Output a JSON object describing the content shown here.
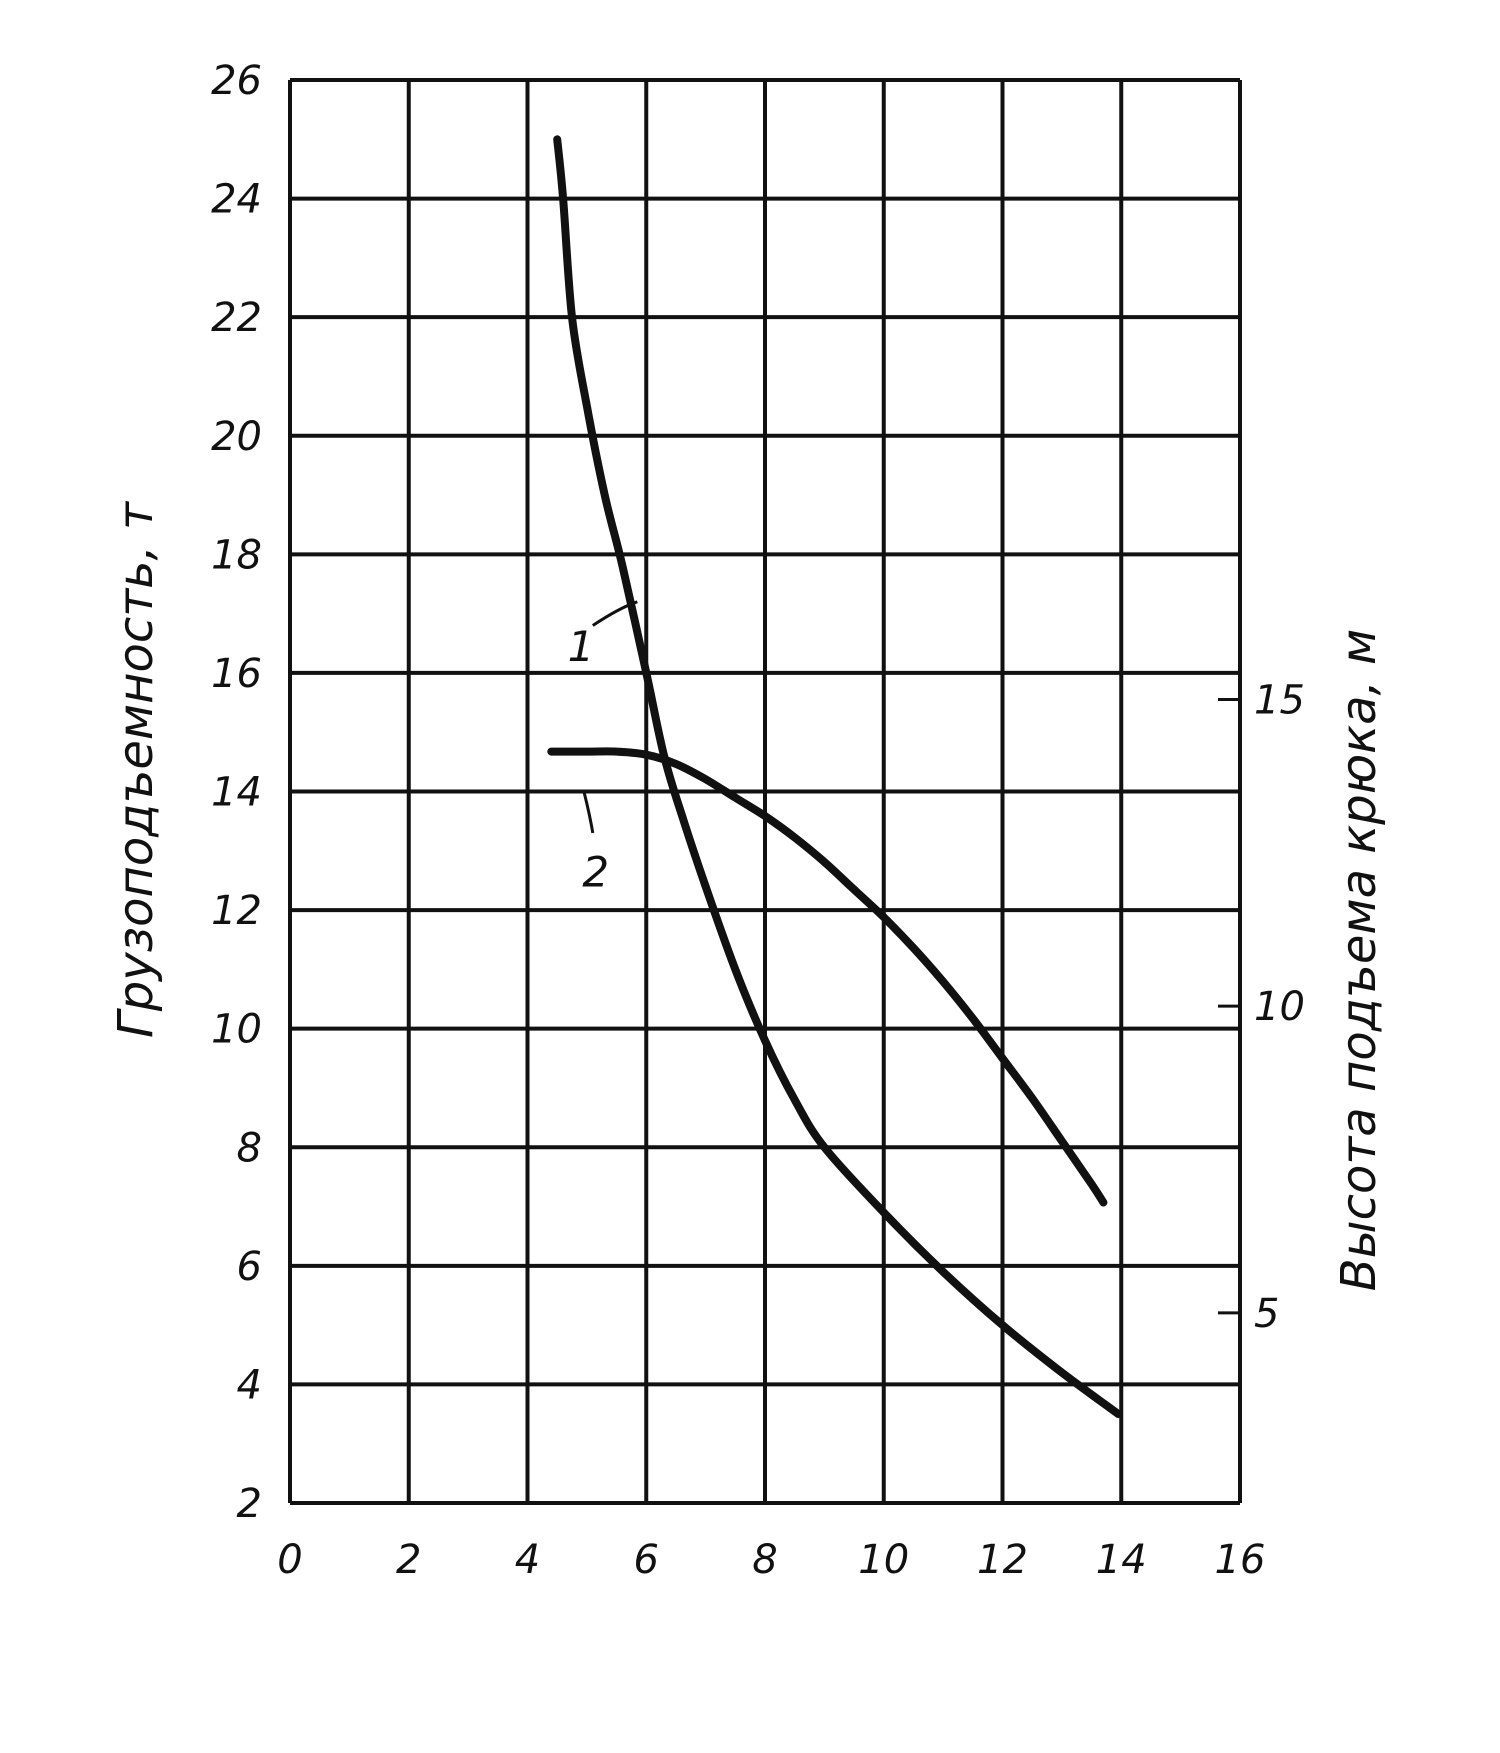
{
  "chart_data": {
    "type": "line",
    "title": "",
    "xlabel": "",
    "ylabel": "Грузоподъемность, т",
    "y2label": "Высота подъема крюка, м",
    "xlim": [
      0,
      16
    ],
    "ylim": [
      2,
      26
    ],
    "y2lim": [
      1.9,
      25.1
    ],
    "x_ticks": [
      "0",
      "2",
      "4",
      "6",
      "8",
      "10",
      "12",
      "14",
      "16"
    ],
    "y_ticks": [
      "2",
      "4",
      "6",
      "8",
      "10",
      "12",
      "14",
      "16",
      "18",
      "20",
      "22",
      "24",
      "26"
    ],
    "y2_ticks": [
      "5",
      "10",
      "15"
    ],
    "grid": true,
    "series": [
      {
        "name": "1",
        "axis": "left",
        "x": [
          4.5,
          4.6,
          4.75,
          5.0,
          5.3,
          5.6,
          6.0,
          6.3,
          6.6,
          7.0,
          7.5,
          8.0,
          8.5,
          9.0,
          10.0,
          11.0,
          12.0,
          13.0,
          13.95
        ],
        "y": [
          25.0,
          24.0,
          22.0,
          20.5,
          19.0,
          17.8,
          16.0,
          14.6,
          13.6,
          12.4,
          11.0,
          9.8,
          8.8,
          8.0,
          6.9,
          5.9,
          5.0,
          4.2,
          3.5
        ]
      },
      {
        "name": "2",
        "axis": "right",
        "x": [
          4.4,
          5.0,
          5.5,
          6.0,
          6.5,
          7.0,
          7.5,
          8.0,
          8.5,
          9.0,
          9.5,
          10.0,
          10.5,
          11.0,
          11.5,
          12.0,
          12.5,
          13.0,
          13.5,
          13.7
        ],
        "y": [
          14.15,
          14.15,
          14.15,
          14.1,
          13.95,
          13.7,
          13.4,
          13.1,
          12.75,
          12.35,
          11.9,
          11.45,
          10.95,
          10.4,
          9.8,
          9.15,
          8.5,
          7.8,
          7.1,
          6.8
        ]
      }
    ]
  }
}
